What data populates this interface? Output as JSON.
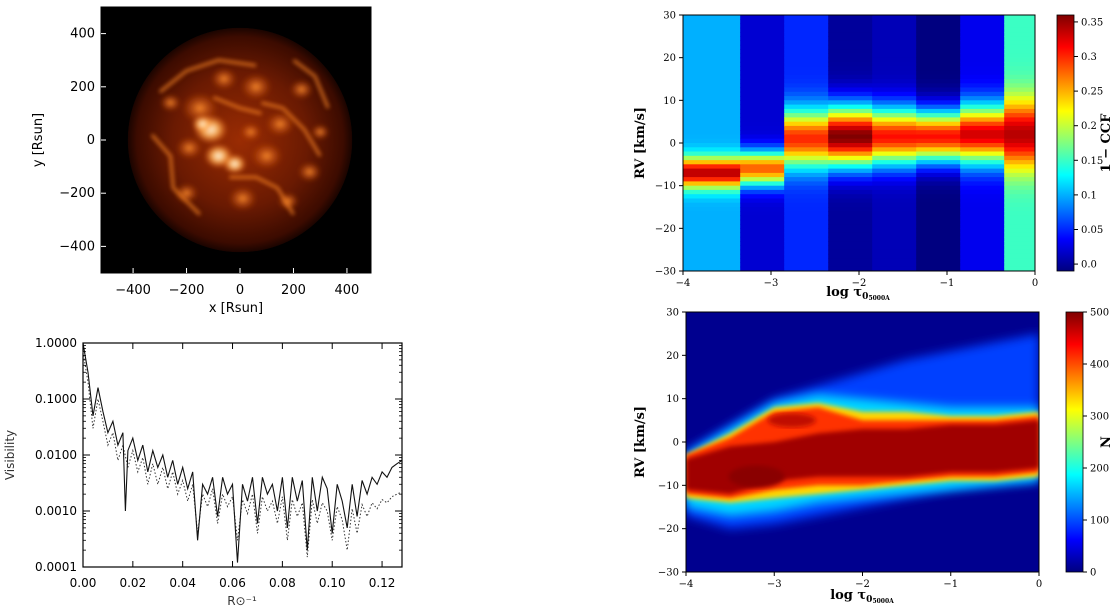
{
  "chart_data": [
    {
      "type": "heatmap",
      "subtype": "image",
      "description_visible": "stellar surface intensity map",
      "xlabel": "x [Rsun]",
      "ylabel": "y [Rsun]",
      "xlim": [
        -520,
        490
      ],
      "ylim": [
        -500,
        500
      ],
      "x_ticks": [
        -400,
        -200,
        0,
        200,
        400
      ],
      "y_ticks": [
        -400,
        -200,
        0,
        200,
        400
      ],
      "disk_center": [
        0,
        0
      ],
      "disk_radius": 420,
      "colormap": "afmhot",
      "colors": {
        "background": "#000000",
        "low": "#3a0a00",
        "mid": "#c84a06",
        "high": "#ff9a35",
        "peak": "#fff4dc"
      }
    },
    {
      "type": "line",
      "xlabel": "R⊙⁻¹",
      "ylabel": "Visibility",
      "xlim": [
        0.0,
        0.128
      ],
      "ylim": [
        0.0001,
        1.0
      ],
      "yscale": "log",
      "x_ticks": [
        "0.00",
        "0.02",
        "0.04",
        "0.06",
        "0.08",
        "0.10",
        "0.12"
      ],
      "y_ticks": [
        "1.0000",
        "0.1000",
        "0.0100",
        "0.0010",
        "0.0001"
      ],
      "series": [
        {
          "style": "solid",
          "x": [
            0.0,
            0.002,
            0.004,
            0.006,
            0.008,
            0.01,
            0.012,
            0.014,
            0.016,
            0.017,
            0.018,
            0.02,
            0.022,
            0.024,
            0.026,
            0.028,
            0.03,
            0.032,
            0.034,
            0.036,
            0.038,
            0.04,
            0.042,
            0.044,
            0.046,
            0.048,
            0.05,
            0.052,
            0.054,
            0.056,
            0.058,
            0.06,
            0.062,
            0.064,
            0.066,
            0.068,
            0.07,
            0.072,
            0.074,
            0.076,
            0.078,
            0.08,
            0.082,
            0.084,
            0.086,
            0.088,
            0.09,
            0.092,
            0.094,
            0.096,
            0.098,
            0.1,
            0.102,
            0.104,
            0.106,
            0.108,
            0.11,
            0.112,
            0.114,
            0.116,
            0.118,
            0.12,
            0.122,
            0.124,
            0.126,
            0.128
          ],
          "y": [
            1.0,
            0.3,
            0.05,
            0.16,
            0.06,
            0.025,
            0.04,
            0.015,
            0.025,
            0.001,
            0.012,
            0.02,
            0.008,
            0.015,
            0.005,
            0.012,
            0.006,
            0.01,
            0.004,
            0.008,
            0.003,
            0.006,
            0.0025,
            0.005,
            0.0003,
            0.003,
            0.002,
            0.004,
            0.0008,
            0.004,
            0.002,
            0.003,
            0.00012,
            0.003,
            0.0015,
            0.004,
            0.0006,
            0.004,
            0.002,
            0.003,
            0.001,
            0.004,
            0.0005,
            0.004,
            0.0015,
            0.0035,
            0.0002,
            0.004,
            0.001,
            0.004,
            0.0025,
            0.0004,
            0.003,
            0.0015,
            0.0005,
            0.003,
            0.0008,
            0.0035,
            0.002,
            0.004,
            0.003,
            0.005,
            0.004,
            0.006,
            0.007,
            0.008
          ]
        },
        {
          "style": "dotted",
          "x": [
            0.0,
            0.002,
            0.004,
            0.006,
            0.008,
            0.01,
            0.012,
            0.014,
            0.016,
            0.018,
            0.02,
            0.022,
            0.024,
            0.026,
            0.028,
            0.03,
            0.032,
            0.034,
            0.036,
            0.038,
            0.04,
            0.042,
            0.044,
            0.046,
            0.048,
            0.05,
            0.052,
            0.054,
            0.056,
            0.058,
            0.06,
            0.062,
            0.064,
            0.066,
            0.068,
            0.07,
            0.072,
            0.074,
            0.076,
            0.078,
            0.08,
            0.082,
            0.084,
            0.086,
            0.088,
            0.09,
            0.092,
            0.094,
            0.096,
            0.098,
            0.1,
            0.102,
            0.104,
            0.106,
            0.108,
            0.11,
            0.112,
            0.114,
            0.116,
            0.118,
            0.12,
            0.122,
            0.124,
            0.126,
            0.128
          ],
          "y": [
            0.7,
            0.2,
            0.03,
            0.1,
            0.04,
            0.015,
            0.025,
            0.008,
            0.015,
            0.006,
            0.012,
            0.005,
            0.009,
            0.003,
            0.007,
            0.003,
            0.006,
            0.0025,
            0.005,
            0.002,
            0.0035,
            0.0015,
            0.003,
            0.0004,
            0.002,
            0.0012,
            0.0025,
            0.0006,
            0.002,
            0.0012,
            0.0018,
            0.0003,
            0.0016,
            0.0009,
            0.002,
            0.0004,
            0.0018,
            0.001,
            0.0015,
            0.0006,
            0.0018,
            0.0003,
            0.0016,
            0.0008,
            0.0014,
            0.00015,
            0.0016,
            0.0006,
            0.0014,
            0.001,
            0.0003,
            0.0012,
            0.0007,
            0.0002,
            0.0011,
            0.0004,
            0.0013,
            0.0008,
            0.0014,
            0.0011,
            0.0016,
            0.0014,
            0.0018,
            0.002,
            0.0022
          ]
        }
      ]
    },
    {
      "type": "heatmap",
      "xlabel": "log τ",
      "xlabel_sub": "0",
      "xlabel_sub2": "5000A",
      "ylabel": "RV [km/s]",
      "colorbar_label": "1 − CCF",
      "xlim": [
        -4,
        0
      ],
      "ylim": [
        -30,
        30
      ],
      "x_ticks": [
        "−4",
        "−3",
        "−2",
        "−1",
        "0"
      ],
      "y_ticks": [
        "30",
        "20",
        "10",
        "0",
        "−10",
        "−20",
        "−30"
      ],
      "colorbar_ticks": [
        "0.35",
        "0.3",
        "0.25",
        "0.2",
        "0.15",
        "0.1",
        "0.05",
        "0.0"
      ],
      "colorbar_range": [
        -0.01,
        0.36
      ],
      "colormap": "jet",
      "columns_x": [
        [
          -4,
          -3.35
        ],
        [
          -3.35,
          -2.85
        ],
        [
          -2.85,
          -2.35
        ],
        [
          -2.35,
          -1.85
        ],
        [
          -1.85,
          -1.35
        ],
        [
          -1.35,
          -0.85
        ],
        [
          -0.85,
          -0.35
        ],
        [
          -0.35,
          0
        ]
      ],
      "column_profiles": [
        {
          "center": -7,
          "width": 3.5,
          "peak": 0.34,
          "base": 0.1
        },
        {
          "center": -6,
          "width": 4.0,
          "peak": 0.28,
          "base": 0.02
        },
        {
          "center": 1,
          "width": 6.5,
          "peak": 0.3,
          "base": 0.05
        },
        {
          "center": 1.5,
          "width": 7.0,
          "peak": 0.36,
          "base": 0.0
        },
        {
          "center": 1.5,
          "width": 6.5,
          "peak": 0.31,
          "base": 0.01
        },
        {
          "center": 1.5,
          "width": 6.0,
          "peak": 0.31,
          "base": -0.01
        },
        {
          "center": 2,
          "width": 6.5,
          "peak": 0.33,
          "base": 0.03
        },
        {
          "center": 2,
          "width": 8.0,
          "peak": 0.34,
          "base": 0.15
        }
      ]
    },
    {
      "type": "heatmap",
      "xlabel": "log τ",
      "xlabel_sub": "0",
      "xlabel_sub2": "5000A",
      "ylabel": "RV [km/s]",
      "colorbar_label": "N",
      "xlim": [
        -4,
        0
      ],
      "ylim": [
        -30,
        30
      ],
      "x_ticks": [
        "−4",
        "−3",
        "−2",
        "−1",
        "0"
      ],
      "y_ticks": [
        "30",
        "20",
        "10",
        "0",
        "−10",
        "−20",
        "−30"
      ],
      "colorbar_ticks": [
        "500",
        "400",
        "300",
        "200",
        "100",
        "0"
      ],
      "colorbar_range": [
        0,
        500
      ],
      "colormap": "jet"
    }
  ]
}
